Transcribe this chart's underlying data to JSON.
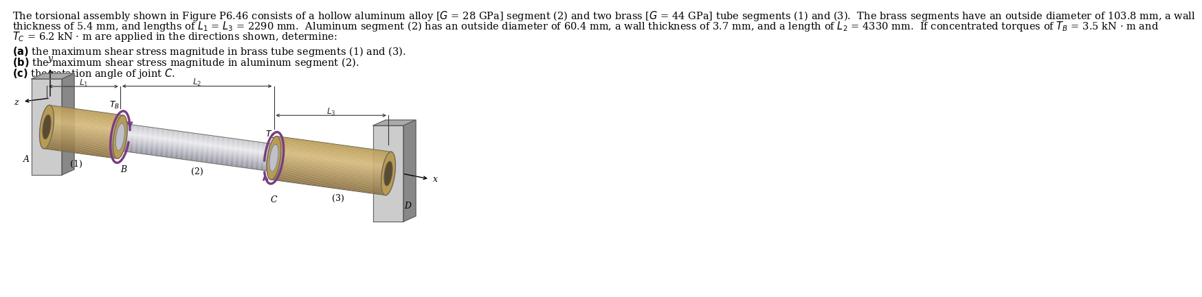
{
  "bg_color": "#ffffff",
  "text_color": "#000000",
  "line1": "The torsional assembly shown in Figure P6.46 consists of a hollow aluminum alloy [$G$ = 28 GPa] segment (2) and two brass [$G$ = 44 GPa] tube segments (1) and (3).  The brass segments have an outside diameter of 103.8 mm, a wall",
  "line2": "thickness of 5.4 mm, and lengths of $L_1$ = $L_3$ = 2290 mm.  Aluminum segment (2) has an outside diameter of 60.4 mm, a wall thickness of 3.7 mm, and a length of $L_2$ = 4330 mm.  If concentrated torques of $T_B$ = 3.5 kN $\\cdot$ m and",
  "line3": "$T_C$ = 6.2 kN $\\cdot$ m are applied in the directions shown, determine:",
  "part_a": "(a) the maximum shear stress magnitude in brass tube segments (1) and (3).",
  "part_b": "(b) the maximum shear stress magnitude in aluminum segment (2).",
  "part_c": "(c) the rotation angle of joint $C$.",
  "brass_light": "#d4b87a",
  "brass_mid": "#b89a52",
  "brass_dark": "#8a7040",
  "alum_light": "#e8e8ec",
  "alum_mid": "#c0c0c8",
  "alum_dark": "#888898",
  "wall_light": "#cccccc",
  "wall_mid": "#aaaaaa",
  "wall_dark": "#888888",
  "purple": "#7a3d80",
  "dim_color": "#333333",
  "font_size": 10.5
}
